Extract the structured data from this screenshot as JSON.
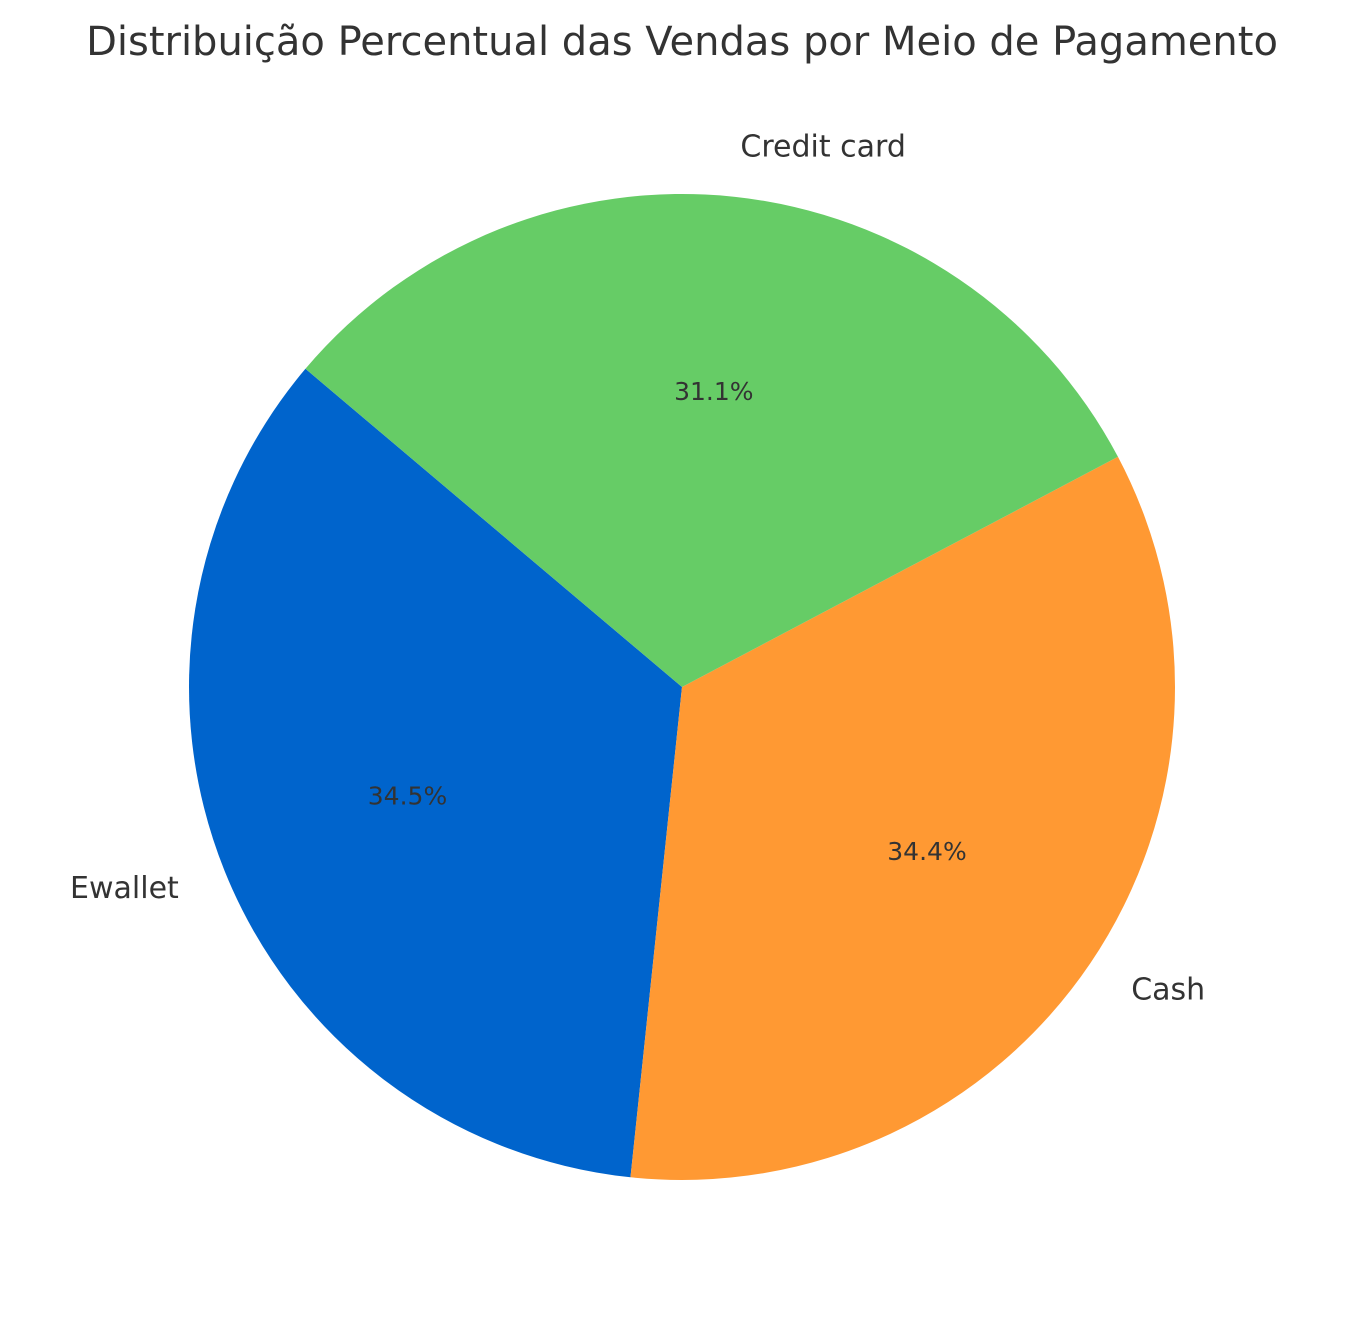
{
  "chart_data": {
    "type": "pie",
    "title": "Distribuição Percentual das Vendas por Meio de Pagamento",
    "start_angle_deg": 139.8,
    "direction": "counterclockwise",
    "slices": [
      {
        "label": "Ewallet",
        "value": 34.5,
        "pct_label": "34.5%",
        "color": "#0064cc"
      },
      {
        "label": "Cash",
        "value": 34.4,
        "pct_label": "34.4%",
        "color": "#ff9933"
      },
      {
        "label": "Credit card",
        "value": 31.1,
        "pct_label": "31.1%",
        "color": "#66cc66"
      }
    ]
  }
}
